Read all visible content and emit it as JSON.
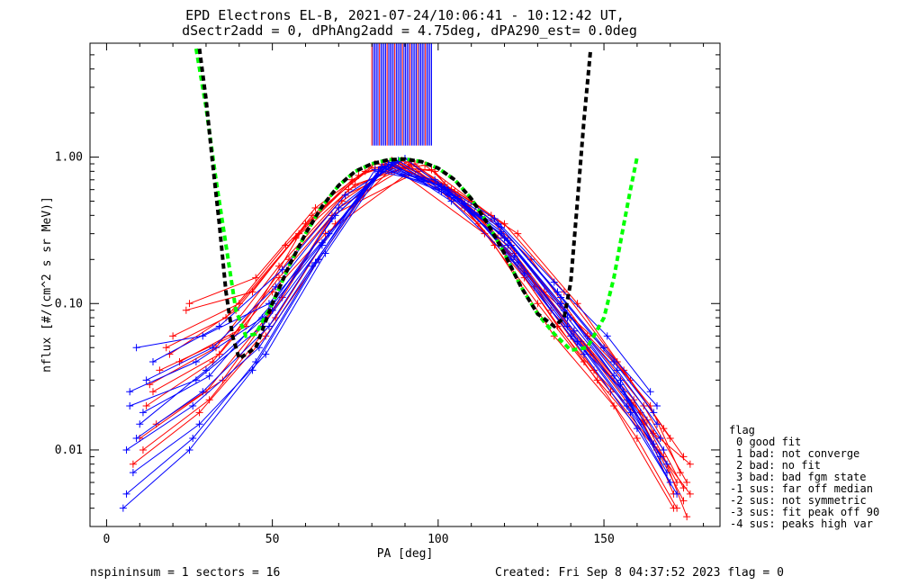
{
  "title_line1": "EPD Electrons EL-B, 2021-07-24/10:06:41 - 10:12:42 UT,",
  "title_line2": "dSectr2add = 0, dPhAng2add = 4.75deg, dPA290_est=    0.0deg",
  "footer_left": "nspininsum =  1  sectors = 16",
  "footer_right": "Created: Fri Sep  8 04:37:52 2023   flag = 0",
  "legend": {
    "title": "flag",
    "items": [
      "0 good fit",
      "1 bad: not converge",
      "2 bad: no fit",
      "3 bad: bad fgm state",
      "-1 sus: far off median",
      "-2 sus: not symmetric",
      "-3 sus: fit peak off 90",
      "-4 sus: peaks high var"
    ]
  },
  "colors": {
    "red_series": "#ff0000",
    "blue_series": "#0000ff",
    "fit_black": "#000000",
    "fit_green": "#00ff00",
    "axes": "#000000",
    "background": "#ffffff"
  },
  "chart_data": {
    "type": "line",
    "title": "EPD Electrons EL-B, 2021-07-24/10:06:41 - 10:12:42 UT,",
    "xlabel": "PA [deg]",
    "ylabel": "nflux [#/(cm^2 s sr MeV)]",
    "xlim": [
      -5,
      185
    ],
    "ylim": [
      0.003,
      6.0
    ],
    "yscale": "log",
    "x_ticks": [
      0,
      50,
      100,
      150
    ],
    "y_ticks": [
      0.01,
      0.1,
      1.0
    ],
    "x_tick_labels": [
      "0",
      "50",
      "100",
      "150"
    ],
    "y_tick_labels": [
      "0.01",
      "0.10",
      "1.00"
    ],
    "grid": false,
    "marker": "+",
    "series": [
      {
        "color": "red",
        "x": [
          16,
          38,
          55,
          72,
          92,
          110,
          128,
          145,
          162,
          175
        ],
        "y": [
          0.035,
          0.06,
          0.2,
          0.55,
          0.9,
          0.5,
          0.2,
          0.06,
          0.02,
          0.006
        ]
      },
      {
        "color": "red",
        "x": [
          12,
          32,
          52,
          70,
          90,
          108,
          126,
          144,
          160,
          172
        ],
        "y": [
          0.02,
          0.04,
          0.15,
          0.45,
          0.85,
          0.45,
          0.15,
          0.04,
          0.012,
          0.004
        ]
      },
      {
        "color": "red",
        "x": [
          18,
          36,
          54,
          74,
          86,
          104,
          122,
          140,
          158,
          174
        ],
        "y": [
          0.05,
          0.08,
          0.25,
          0.7,
          0.95,
          0.6,
          0.25,
          0.08,
          0.03,
          0.009
        ]
      },
      {
        "color": "red",
        "x": [
          10,
          30,
          50,
          68,
          94,
          112,
          130,
          148,
          166,
          176
        ],
        "y": [
          0.012,
          0.025,
          0.09,
          0.4,
          0.8,
          0.35,
          0.1,
          0.03,
          0.01,
          0.005
        ]
      },
      {
        "color": "red",
        "x": [
          20,
          40,
          58,
          76,
          88,
          106,
          124,
          142,
          156,
          170
        ],
        "y": [
          0.06,
          0.1,
          0.3,
          0.75,
          0.92,
          0.55,
          0.3,
          0.1,
          0.035,
          0.012
        ]
      },
      {
        "color": "red",
        "x": [
          14,
          34,
          50,
          66,
          90,
          114,
          132,
          150,
          164,
          173
        ],
        "y": [
          0.025,
          0.045,
          0.12,
          0.3,
          0.75,
          0.3,
          0.12,
          0.05,
          0.02,
          0.007
        ]
      },
      {
        "color": "red",
        "x": [
          22,
          42,
          60,
          78,
          96,
          116,
          134,
          146,
          162,
          174
        ],
        "y": [
          0.04,
          0.07,
          0.35,
          0.8,
          0.88,
          0.4,
          0.09,
          0.045,
          0.015,
          0.0045
        ]
      },
      {
        "color": "red",
        "x": [
          8,
          28,
          48,
          64,
          84,
          102,
          120,
          138,
          154,
          168
        ],
        "y": [
          0.008,
          0.018,
          0.06,
          0.2,
          0.9,
          0.65,
          0.35,
          0.12,
          0.04,
          0.014
        ]
      },
      {
        "color": "red",
        "x": [
          24,
          44,
          62,
          80,
          98,
          118,
          136,
          152,
          168,
          175
        ],
        "y": [
          0.09,
          0.12,
          0.4,
          0.85,
          0.82,
          0.28,
          0.07,
          0.025,
          0.009,
          0.0035
        ]
      },
      {
        "color": "red",
        "x": [
          15,
          35,
          53,
          71,
          89,
          107,
          125,
          143,
          161,
          172
        ],
        "y": [
          0.015,
          0.03,
          0.11,
          0.5,
          0.95,
          0.5,
          0.18,
          0.055,
          0.018,
          0.006
        ]
      },
      {
        "color": "red",
        "x": [
          19,
          39,
          57,
          75,
          93,
          111,
          129,
          147,
          165,
          176
        ],
        "y": [
          0.045,
          0.09,
          0.28,
          0.65,
          0.9,
          0.42,
          0.13,
          0.035,
          0.013,
          0.008
        ]
      },
      {
        "color": "red",
        "x": [
          11,
          31,
          51,
          69,
          87,
          105,
          123,
          141,
          159,
          171
        ],
        "y": [
          0.01,
          0.022,
          0.08,
          0.35,
          0.88,
          0.58,
          0.22,
          0.065,
          0.022,
          0.005
        ]
      },
      {
        "color": "red",
        "x": [
          25,
          45,
          63,
          81,
          99,
          117,
          135,
          153,
          171
        ],
        "y": [
          0.1,
          0.15,
          0.45,
          0.9,
          0.8,
          0.25,
          0.06,
          0.02,
          0.004
        ]
      },
      {
        "color": "red",
        "x": [
          13,
          33,
          52,
          73,
          91,
          109,
          127,
          145,
          163,
          174
        ],
        "y": [
          0.028,
          0.05,
          0.18,
          0.6,
          0.93,
          0.47,
          0.16,
          0.05,
          0.016,
          0.0055
        ]
      },
      {
        "color": "blue",
        "x": [
          7,
          27,
          47,
          65,
          83,
          101,
          119,
          137,
          155,
          167
        ],
        "y": [
          0.02,
          0.03,
          0.07,
          0.25,
          0.85,
          0.6,
          0.3,
          0.1,
          0.03,
          0.012
        ]
      },
      {
        "color": "blue",
        "x": [
          9,
          29,
          49,
          67,
          85,
          103,
          121,
          139,
          157,
          169
        ],
        "y": [
          0.05,
          0.06,
          0.1,
          0.3,
          0.9,
          0.55,
          0.25,
          0.07,
          0.02,
          0.008
        ]
      },
      {
        "color": "blue",
        "x": [
          6,
          26,
          46,
          62,
          82,
          100,
          118,
          136,
          150,
          166
        ],
        "y": [
          0.01,
          0.02,
          0.05,
          0.18,
          0.8,
          0.65,
          0.35,
          0.12,
          0.05,
          0.02
        ]
      },
      {
        "color": "blue",
        "x": [
          10,
          30,
          50,
          68,
          86,
          104,
          122,
          140,
          156,
          168
        ],
        "y": [
          0.015,
          0.035,
          0.09,
          0.38,
          0.92,
          0.5,
          0.2,
          0.06,
          0.025,
          0.01
        ]
      },
      {
        "color": "blue",
        "x": [
          8,
          28,
          48,
          66,
          84,
          102,
          120,
          138,
          154,
          166
        ],
        "y": [
          0.007,
          0.015,
          0.045,
          0.22,
          0.87,
          0.62,
          0.28,
          0.09,
          0.035,
          0.015
        ]
      },
      {
        "color": "blue",
        "x": [
          12,
          32,
          51,
          70,
          88,
          106,
          124,
          142,
          158,
          170
        ],
        "y": [
          0.03,
          0.05,
          0.13,
          0.45,
          0.95,
          0.52,
          0.19,
          0.055,
          0.018,
          0.006
        ]
      },
      {
        "color": "blue",
        "x": [
          5,
          25,
          44,
          64,
          83,
          101,
          119,
          137,
          153,
          165
        ],
        "y": [
          0.004,
          0.01,
          0.035,
          0.2,
          0.85,
          0.58,
          0.33,
          0.11,
          0.04,
          0.018
        ]
      },
      {
        "color": "blue",
        "x": [
          14,
          34,
          53,
          72,
          90,
          108,
          126,
          144,
          160,
          172
        ],
        "y": [
          0.04,
          0.07,
          0.17,
          0.55,
          0.98,
          0.48,
          0.16,
          0.045,
          0.014,
          0.005
        ]
      },
      {
        "color": "blue",
        "x": [
          9,
          29,
          49,
          67,
          85,
          103,
          121,
          139,
          155,
          167
        ],
        "y": [
          0.012,
          0.025,
          0.07,
          0.3,
          0.9,
          0.6,
          0.27,
          0.08,
          0.028,
          0.009
        ]
      },
      {
        "color": "blue",
        "x": [
          7,
          27,
          47,
          65,
          83,
          101,
          119,
          137,
          153,
          165
        ],
        "y": [
          0.025,
          0.04,
          0.08,
          0.26,
          0.86,
          0.63,
          0.31,
          0.1,
          0.032,
          0.011
        ]
      },
      {
        "color": "blue",
        "x": [
          11,
          31,
          50,
          69,
          87,
          105,
          123,
          141,
          157,
          169
        ],
        "y": [
          0.018,
          0.032,
          0.1,
          0.4,
          0.93,
          0.53,
          0.21,
          0.065,
          0.022,
          0.007
        ]
      },
      {
        "color": "blue",
        "x": [
          6,
          26,
          45,
          63,
          81,
          99,
          117,
          135,
          151,
          164
        ],
        "y": [
          0.005,
          0.012,
          0.04,
          0.19,
          0.82,
          0.7,
          0.38,
          0.14,
          0.06,
          0.025
        ]
      }
    ],
    "fit_curves": [
      {
        "color": "black",
        "style": "dashed",
        "x": [
          28,
          30,
          32,
          34,
          36,
          38,
          40,
          45,
          50,
          55,
          60,
          65,
          70,
          75,
          80,
          85,
          90,
          95,
          100,
          105,
          110,
          115,
          120,
          125,
          130,
          135,
          138,
          140,
          142,
          144,
          146
        ],
        "y": [
          5.5,
          2.5,
          0.9,
          0.35,
          0.12,
          0.06,
          0.042,
          0.05,
          0.1,
          0.18,
          0.3,
          0.46,
          0.64,
          0.8,
          0.9,
          0.96,
          0.97,
          0.93,
          0.84,
          0.7,
          0.52,
          0.35,
          0.22,
          0.13,
          0.085,
          0.07,
          0.08,
          0.14,
          0.5,
          1.8,
          5.5
        ]
      },
      {
        "color": "green",
        "style": "dashed",
        "x": [
          27,
          30,
          33,
          36,
          39,
          42,
          45,
          50,
          55,
          60,
          65,
          70,
          75,
          80,
          85,
          90,
          95,
          100,
          105,
          110,
          115,
          120,
          125,
          130,
          135,
          140,
          145,
          150,
          153,
          156,
          158,
          160
        ],
        "y": [
          5.5,
          2.2,
          0.7,
          0.25,
          0.09,
          0.06,
          0.062,
          0.1,
          0.18,
          0.3,
          0.46,
          0.64,
          0.8,
          0.9,
          0.96,
          0.97,
          0.93,
          0.84,
          0.7,
          0.52,
          0.35,
          0.22,
          0.13,
          0.085,
          0.062,
          0.048,
          0.05,
          0.08,
          0.15,
          0.35,
          0.6,
          1.0
        ]
      }
    ],
    "saturated_vertical_lines": {
      "x_range": [
        80,
        98
      ],
      "y_from": 1.2,
      "y_to": 6.0
    }
  }
}
